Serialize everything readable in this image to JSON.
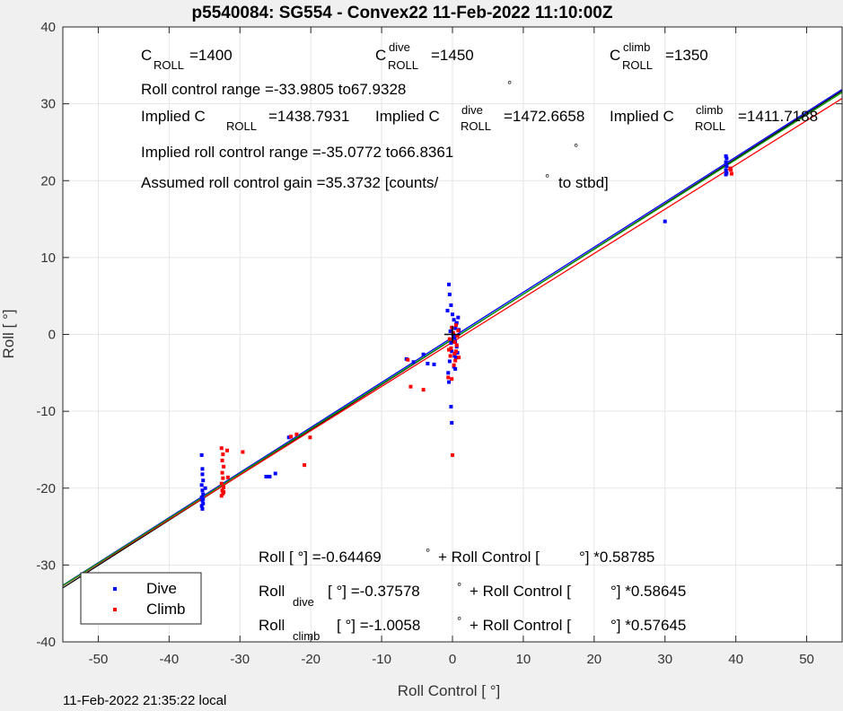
{
  "chart_data": {
    "type": "scatter",
    "title": "p5540084: SG554 - Convex22 11-Feb-2022 11:10:00Z",
    "xlabel": "Roll Control [   °]",
    "ylabel": "Roll [  °]",
    "xlim": [
      -55,
      55
    ],
    "ylim": [
      -40,
      40
    ],
    "xticks": [
      -50,
      -40,
      -30,
      -20,
      -10,
      0,
      10,
      20,
      30,
      40,
      50
    ],
    "yticks": [
      -40,
      -30,
      -20,
      -10,
      0,
      10,
      20,
      30,
      40
    ],
    "grid": true,
    "legend_position": "bottom-left",
    "series": [
      {
        "name": "Dive",
        "color": "#0000ff",
        "points": [
          [
            -35.4,
            -15.7
          ],
          [
            -35.3,
            -17.5
          ],
          [
            -35.3,
            -18.2
          ],
          [
            -35.2,
            -19.0
          ],
          [
            -35.4,
            -19.6
          ],
          [
            -35.3,
            -20.3
          ],
          [
            -35.2,
            -20.8
          ],
          [
            -35.4,
            -21.2
          ],
          [
            -35.3,
            -21.6
          ],
          [
            -35.2,
            -22.0
          ],
          [
            -35.4,
            -22.3
          ],
          [
            -35.3,
            -22.7
          ],
          [
            -35.2,
            -21.4
          ],
          [
            -34.9,
            -20.0
          ],
          [
            -26.3,
            -18.5
          ],
          [
            -25.8,
            -18.5
          ],
          [
            -25.0,
            -18.1
          ],
          [
            -23.1,
            -13.4
          ],
          [
            -6.5,
            -3.2
          ],
          [
            -5.5,
            -3.6
          ],
          [
            -4.1,
            -2.6
          ],
          [
            -3.5,
            -3.8
          ],
          [
            -2.6,
            -3.9
          ],
          [
            -0.5,
            6.5
          ],
          [
            -0.4,
            5.2
          ],
          [
            -0.2,
            3.8
          ],
          [
            0.0,
            2.6
          ],
          [
            0.2,
            1.9
          ],
          [
            0.5,
            1.3
          ],
          [
            0.4,
            0.8
          ],
          [
            -0.3,
            0.4
          ],
          [
            0.1,
            0.0
          ],
          [
            0.3,
            -0.5
          ],
          [
            -0.2,
            -1.1
          ],
          [
            0.6,
            -1.6
          ],
          [
            -0.1,
            -2.2
          ],
          [
            0.3,
            -2.8
          ],
          [
            -0.4,
            -3.5
          ],
          [
            0.2,
            -4.2
          ],
          [
            -0.6,
            -5.0
          ],
          [
            -0.5,
            -6.2
          ],
          [
            -0.2,
            -9.4
          ],
          [
            -0.1,
            -11.5
          ],
          [
            0.4,
            -1.0
          ],
          [
            0.7,
            -2.4
          ],
          [
            0.5,
            -3.0
          ],
          [
            0.8,
            2.2
          ],
          [
            0.6,
            1.5
          ],
          [
            -0.7,
            3.1
          ],
          [
            0.9,
            0.6
          ],
          [
            0.4,
            -4.5
          ],
          [
            30.0,
            14.7
          ],
          [
            38.6,
            20.8
          ],
          [
            38.6,
            21.4
          ],
          [
            38.7,
            21.9
          ],
          [
            38.6,
            22.4
          ],
          [
            38.7,
            22.9
          ],
          [
            38.6,
            23.2
          ],
          [
            38.7,
            21.0
          ]
        ]
      },
      {
        "name": "Climb",
        "color": "#ff0000",
        "points": [
          [
            -32.6,
            -14.8
          ],
          [
            -32.4,
            -15.6
          ],
          [
            -32.5,
            -16.4
          ],
          [
            -32.3,
            -17.2
          ],
          [
            -32.5,
            -18.0
          ],
          [
            -32.4,
            -18.7
          ],
          [
            -32.6,
            -19.4
          ],
          [
            -32.3,
            -19.9
          ],
          [
            -32.5,
            -20.3
          ],
          [
            -32.4,
            -20.7
          ],
          [
            -32.6,
            -21.0
          ],
          [
            -32.3,
            -20.5
          ],
          [
            -31.7,
            -18.6
          ],
          [
            -31.8,
            -15.1
          ],
          [
            -29.6,
            -15.3
          ],
          [
            -22.8,
            -13.3
          ],
          [
            -22.0,
            -13.0
          ],
          [
            -20.1,
            -13.4
          ],
          [
            -20.9,
            -17.0
          ],
          [
            -5.9,
            -6.8
          ],
          [
            -4.1,
            -7.2
          ],
          [
            -6.3,
            -3.3
          ],
          [
            -0.6,
            -5.6
          ],
          [
            -0.1,
            -5.8
          ],
          [
            0.2,
            -4.0
          ],
          [
            0.4,
            -3.4
          ],
          [
            -0.3,
            -2.8
          ],
          [
            0.5,
            -2.2
          ],
          [
            -0.2,
            -1.8
          ],
          [
            0.6,
            -1.4
          ],
          [
            0.3,
            -1.0
          ],
          [
            -0.4,
            -0.6
          ],
          [
            0.7,
            -0.2
          ],
          [
            0.1,
            0.2
          ],
          [
            0.8,
            0.5
          ],
          [
            -0.1,
            0.9
          ],
          [
            0.5,
            1.2
          ],
          [
            0.3,
            -2.5
          ],
          [
            0.9,
            -3.0
          ],
          [
            -0.5,
            -2.0
          ],
          [
            0.0,
            -15.7
          ],
          [
            39.3,
            21.4
          ],
          [
            39.4,
            20.9
          ],
          [
            39.2,
            21.6
          ]
        ]
      }
    ],
    "fits": [
      {
        "color": "#000000",
        "intercept": -0.64469,
        "slope": 0.58785
      },
      {
        "color": "#0000ff",
        "intercept": -0.37578,
        "slope": 0.58645
      },
      {
        "color": "#ff0000",
        "intercept": -1.0058,
        "slope": 0.57645
      },
      {
        "color": "#00a000",
        "intercept": -0.6,
        "slope": 0.5832
      }
    ],
    "origin_marker": true
  },
  "annotations": {
    "c_roll": {
      "base": "C",
      "sub": "ROLL",
      "value": "=1400"
    },
    "c_roll_dive": {
      "base": "C",
      "sup": "dive",
      "sub": "ROLL",
      "value": "=1450"
    },
    "c_roll_climb": {
      "base": "C",
      "sup": "climb",
      "sub": "ROLL",
      "value": "=1350"
    },
    "roll_range": "Roll control range =-33.9805 to67.9328",
    "roll_range_deg": "°",
    "implied": {
      "prefix": "Implied C",
      "sub": "ROLL",
      "value": "=1438.7931"
    },
    "implied_dive": {
      "prefix": "Implied C",
      "sup": "dive",
      "sub": "ROLL",
      "value": "=1472.6658"
    },
    "implied_climb": {
      "prefix": "Implied C",
      "sup": "climb",
      "sub": "ROLL",
      "value": "=1411.7188"
    },
    "implied_range": "Implied roll control range =-35.0772 to66.8361",
    "implied_range_deg": "°",
    "gain": "Assumed roll control gain =35.3732 [counts/",
    "gain_deg": "°",
    "gain_tail": "to stbd]",
    "eq_all": {
      "a": "Roll [  °] =-0.64469",
      "b": "°",
      "c": "+ Roll Control [",
      "d": "°] *0.58785"
    },
    "eq_dive": {
      "base": "Roll",
      "sub": "dive",
      "a": "[  °] =-0.37578",
      "b": "°",
      "c": "+ Roll Control [",
      "d": "°] *0.58645"
    },
    "eq_climb": {
      "base": "Roll",
      "sub": "climb",
      "a": "[  °] =-1.0058",
      "b": "°",
      "c": "+ Roll Control [",
      "d": "°] *0.57645"
    }
  },
  "footer": "11-Feb-2022 21:35:22 local"
}
